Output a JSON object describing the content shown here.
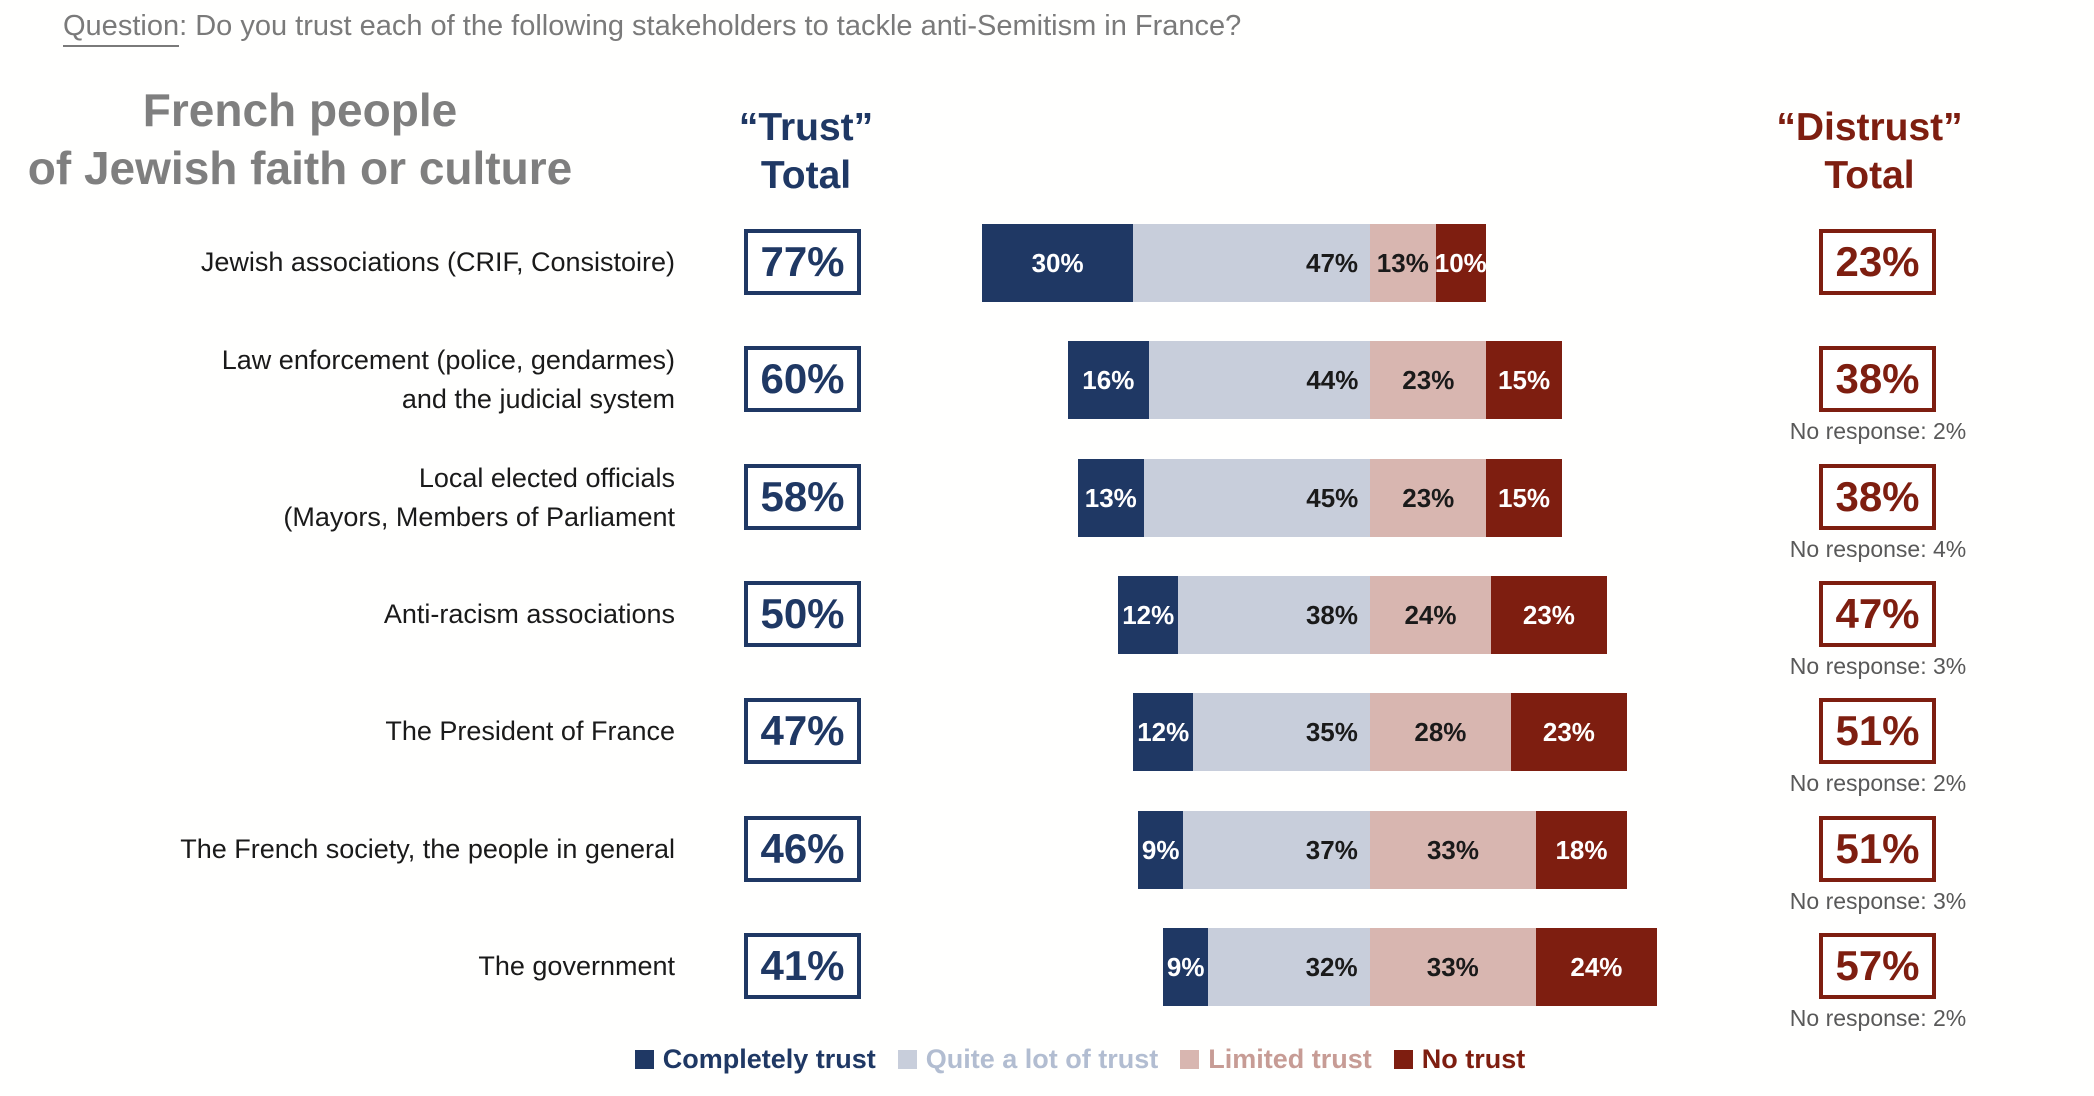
{
  "question": {
    "label": "Question",
    "rest": ":  Do you trust each of the following stakeholders to tackle anti-Semitism in France?"
  },
  "title": {
    "line1": "French people",
    "line2": "of Jewish faith or culture"
  },
  "headers": {
    "trust": {
      "line1": "“Trust”",
      "line2": "Total"
    },
    "distrust": {
      "line1": "“Distrust”",
      "line2": "Total"
    }
  },
  "colors": {
    "completely_trust": "#1f3864",
    "quite_a_lot_of_trust": "#c8cedb",
    "limited_trust": "#d8b6b0",
    "no_trust": "#7e1e10",
    "legend_text": [
      "#1f3864",
      "#b2bdd1",
      "#c79c95",
      "#7e1e10"
    ],
    "box_trust": "#1f3864",
    "box_distrust": "#7e1e10",
    "muted_gray": "#7f7f7f"
  },
  "legend": [
    {
      "label": "Completely trust"
    },
    {
      "label": "Quite a lot of trust"
    },
    {
      "label": "Limited trust"
    },
    {
      "label": "No trust"
    }
  ],
  "rows": [
    {
      "label_lines": [
        "Jewish associations (CRIF, Consistoire)"
      ],
      "trust_total": "77%",
      "values": [
        30,
        47,
        13,
        10
      ],
      "value_labels": [
        "30%",
        "47%",
        "13%",
        "10%"
      ],
      "distrust_total": "23%",
      "no_response": ""
    },
    {
      "label_lines": [
        "Law enforcement (police, gendarmes)",
        "and the judicial system"
      ],
      "trust_total": "60%",
      "values": [
        16,
        44,
        23,
        15
      ],
      "value_labels": [
        "16%",
        "44%",
        "23%",
        "15%"
      ],
      "distrust_total": "38%",
      "no_response": "No response: 2%"
    },
    {
      "label_lines": [
        "Local elected officials",
        "(Mayors, Members of Parliament"
      ],
      "trust_total": "58%",
      "values": [
        13,
        45,
        23,
        15
      ],
      "value_labels": [
        "13%",
        "45%",
        "23%",
        "15%"
      ],
      "distrust_total": "38%",
      "no_response": "No response: 4%"
    },
    {
      "label_lines": [
        "Anti-racism associations"
      ],
      "trust_total": "50%",
      "values": [
        12,
        38,
        24,
        23
      ],
      "value_labels": [
        "12%",
        "38%",
        "24%",
        "23%"
      ],
      "distrust_total": "47%",
      "no_response": "No response: 3%"
    },
    {
      "label_lines": [
        "The President of France"
      ],
      "trust_total": "47%",
      "values": [
        12,
        35,
        28,
        23
      ],
      "value_labels": [
        "12%",
        "35%",
        "28%",
        "23%"
      ],
      "distrust_total": "51%",
      "no_response": "No response: 2%"
    },
    {
      "label_lines": [
        "The French society, the people in general"
      ],
      "trust_total": "46%",
      "values": [
        9,
        37,
        33,
        18
      ],
      "value_labels": [
        "9%",
        "37%",
        "33%",
        "18%"
      ],
      "distrust_total": "51%",
      "no_response": "No response: 3%"
    },
    {
      "label_lines": [
        "The government"
      ],
      "trust_total": "41%",
      "values": [
        9,
        32,
        33,
        24
      ],
      "value_labels": [
        "9%",
        "32%",
        "33%",
        "24%"
      ],
      "distrust_total": "57%",
      "no_response": "No response: 2%"
    }
  ],
  "chart_data": {
    "type": "bar",
    "subtype": "horizontal-diverging-stacked",
    "title": "French people of Jewish faith or culture",
    "question": "Do you trust each of the following stakeholders to tackle anti-Semitism in France?",
    "categories": [
      "Jewish associations (CRIF, Consistoire)",
      "Law enforcement (police, gendarmes) and the judicial system",
      "Local elected officials (Mayors, Members of Parliament",
      "Anti-racism associations",
      "The President of France",
      "The French society, the people in general",
      "The government"
    ],
    "series": [
      {
        "name": "Completely trust",
        "values": [
          30,
          16,
          13,
          12,
          12,
          9,
          9
        ]
      },
      {
        "name": "Quite a lot of trust",
        "values": [
          47,
          44,
          45,
          38,
          35,
          37,
          32
        ]
      },
      {
        "name": "Limited trust",
        "values": [
          13,
          23,
          23,
          24,
          28,
          33,
          33
        ]
      },
      {
        "name": "No trust",
        "values": [
          10,
          15,
          15,
          23,
          23,
          18,
          24
        ]
      }
    ],
    "trust_total": [
      77,
      60,
      58,
      50,
      47,
      46,
      41
    ],
    "distrust_total": [
      23,
      38,
      38,
      47,
      51,
      51,
      57
    ],
    "no_response": [
      null,
      2,
      4,
      3,
      2,
      3,
      2
    ],
    "units": "%",
    "legend_position": "bottom",
    "grid": false
  }
}
